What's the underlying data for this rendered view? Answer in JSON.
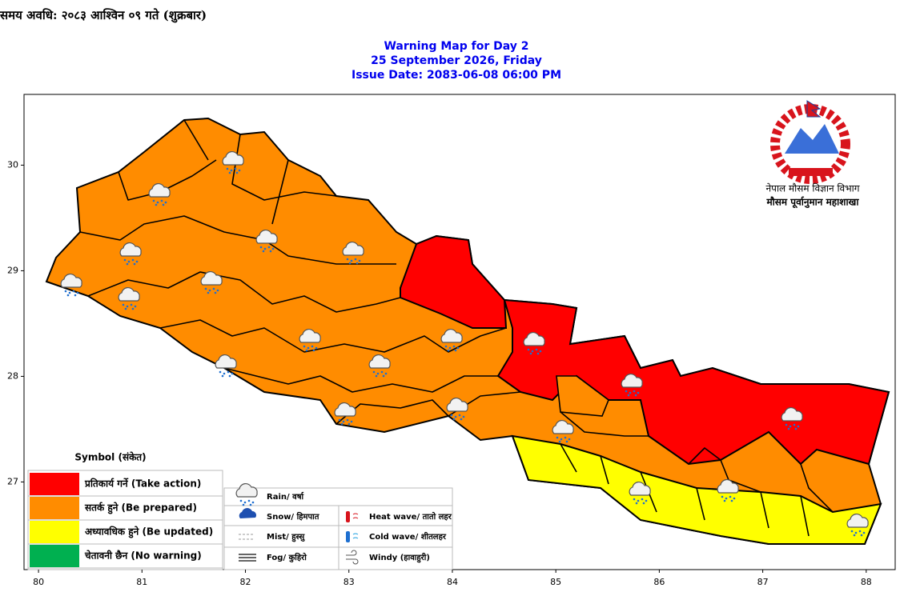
{
  "header": {
    "period": "समय अवधि: २०८३ आश्विन ०९ गते (शुक्रबार)"
  },
  "map": {
    "title": [
      "Warning Map for Day 2",
      "25 September 2026, Friday",
      "Issue Date: 2083-06-08 06:00 PM"
    ],
    "xlim": [
      79.86,
      88.28
    ],
    "ylim": [
      26.17,
      30.67
    ],
    "xticks": [
      80,
      81,
      82,
      83,
      84,
      85,
      86,
      87,
      88
    ],
    "yticks": [
      27,
      28,
      29,
      30
    ]
  },
  "legend": {
    "title": "Symbol (संकेत)",
    "levels": [
      {
        "label": "प्रतिकार्य गर्ने (Take action)",
        "color": "#ff0000"
      },
      {
        "label": "सतर्क हुने (Be prepared)",
        "color": "#ff8c00"
      },
      {
        "label": "अध्यावधिक हुने (Be updated)",
        "color": "#ffff00"
      },
      {
        "label": "चेतावनी छैन (No warning)",
        "color": "#00b050"
      }
    ]
  },
  "symbols": [
    "Rain/ वर्षा",
    "Snow/ हिमपात",
    "Mist/ हुस्सु",
    "Fog/ कुहिरो",
    "Heat wave/ तातो लहर",
    "Cold wave/ शीतलहर",
    "Windy (हावाहुरी)"
  ],
  "logo": {
    "line1": "नेपाल मौसम विज्ञान विभाग",
    "line2": "मौसम पूर्वानुमान महाशाखा"
  }
}
